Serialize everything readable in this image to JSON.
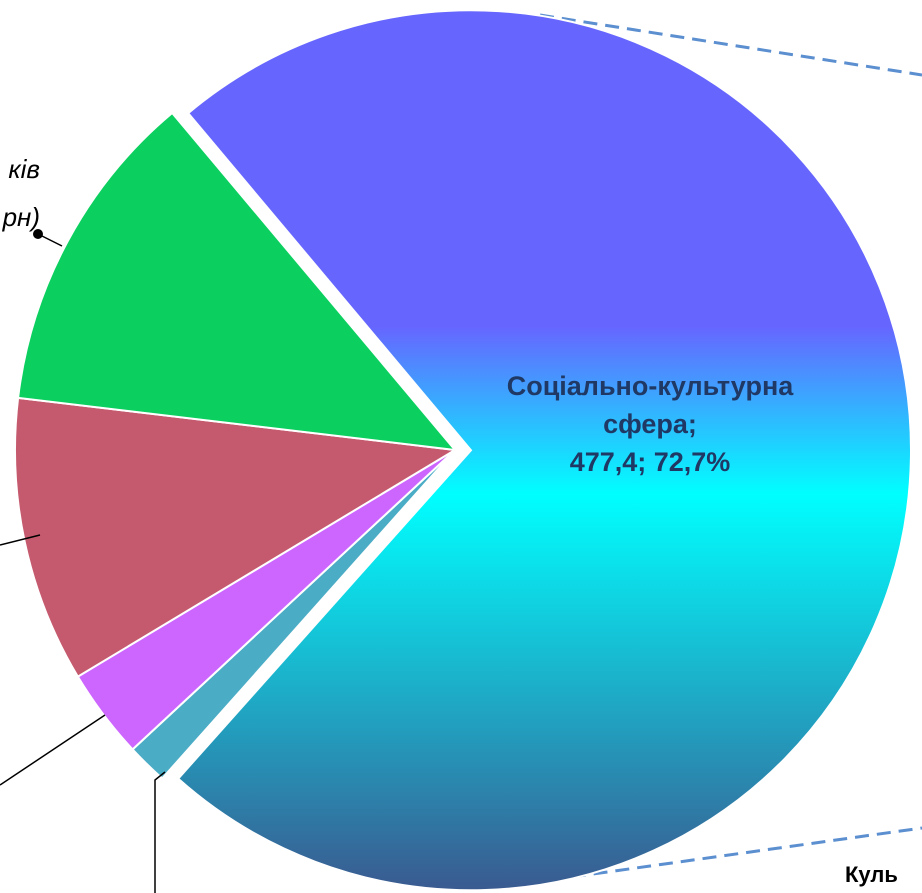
{
  "chart_data": {
    "type": "pie",
    "categories": [
      "Соціально-культурна сфера",
      null,
      null,
      null,
      null
    ],
    "values": [
      72.7,
      1.5,
      3.3,
      10.5,
      12.0
    ],
    "value_labels": [
      "Соціально-культурна сфера; 477,4; 72,7%",
      null,
      null,
      null,
      null
    ],
    "colors": [
      "gradient",
      "#4bacc6",
      "#cc66ff",
      "#c55a6e",
      "#0bd05f"
    ],
    "gradient_colors": [
      "#6666ff",
      "#00ffff",
      "#3a5a90"
    ],
    "exploded": [
      true,
      false,
      false,
      false,
      false
    ],
    "start_angle": -130,
    "annotations": [
      "ків",
      "рн)",
      "Куль"
    ]
  }
}
